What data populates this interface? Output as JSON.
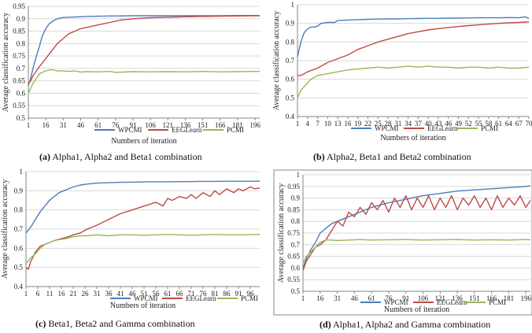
{
  "colors": {
    "WPCMI": "#4a7ebb",
    "EEGLearn": "#be4b48",
    "PCMI": "#98b954",
    "grid": "#d9d9d9",
    "axis": "#868686"
  },
  "chart_data": [
    {
      "type": "line",
      "panel_label": "(a)",
      "caption": "Alpha1, Alpha2 and Beta1 combination",
      "xlabel": "Numbers of iteration",
      "ylabel": "Average classification accuracy",
      "ylim": [
        0.5,
        0.95
      ],
      "yticks": [
        "0.5",
        "0.55",
        "0.6",
        "0.65",
        "0.7",
        "0.75",
        "0.8",
        "0.85",
        "0.9",
        "0.95"
      ],
      "xlim": [
        1,
        200
      ],
      "xticks": [
        1,
        16,
        31,
        46,
        61,
        76,
        91,
        106,
        121,
        136,
        151,
        166,
        181,
        196
      ],
      "grid": true,
      "legend_position": "bottom",
      "series": [
        {
          "name": "WPCMI",
          "x": [
            1,
            3,
            5,
            8,
            10,
            13,
            16,
            19,
            22,
            26,
            31,
            36,
            41,
            46,
            51,
            61,
            71,
            76,
            91,
            106,
            121,
            136,
            151,
            166,
            181,
            196,
            200
          ],
          "values": [
            0.63,
            0.66,
            0.7,
            0.75,
            0.78,
            0.83,
            0.86,
            0.88,
            0.89,
            0.9,
            0.905,
            0.906,
            0.907,
            0.908,
            0.909,
            0.91,
            0.911,
            0.911,
            0.912,
            0.912,
            0.912,
            0.912,
            0.912,
            0.912,
            0.913,
            0.913,
            0.913
          ]
        },
        {
          "name": "EEGLearn",
          "x": [
            1,
            3,
            5,
            8,
            11,
            16,
            21,
            26,
            31,
            36,
            41,
            46,
            51,
            56,
            61,
            66,
            71,
            76,
            81,
            91,
            106,
            121,
            136,
            151,
            166,
            181,
            196,
            200
          ],
          "values": [
            0.64,
            0.65,
            0.67,
            0.69,
            0.71,
            0.74,
            0.77,
            0.8,
            0.82,
            0.84,
            0.85,
            0.86,
            0.865,
            0.87,
            0.875,
            0.88,
            0.885,
            0.89,
            0.895,
            0.9,
            0.904,
            0.906,
            0.908,
            0.909,
            0.91,
            0.911,
            0.912,
            0.912
          ]
        },
        {
          "name": "PCMI",
          "x": [
            1,
            3,
            5,
            8,
            11,
            16,
            21,
            26,
            31,
            36,
            41,
            46,
            51,
            61,
            71,
            76,
            91,
            106,
            121,
            136,
            151,
            166,
            181,
            196,
            200
          ],
          "values": [
            0.6,
            0.62,
            0.64,
            0.66,
            0.68,
            0.69,
            0.695,
            0.69,
            0.69,
            0.688,
            0.69,
            0.685,
            0.687,
            0.686,
            0.688,
            0.684,
            0.687,
            0.686,
            0.687,
            0.686,
            0.688,
            0.686,
            0.687,
            0.688,
            0.688
          ]
        }
      ]
    },
    {
      "type": "line",
      "panel_label": "(b)",
      "caption": "Alpha2, Beta1 and Beta2 combination",
      "xlabel": "Numbers of iteration",
      "ylabel": "Average classification accuracy",
      "ylim": [
        0.4,
        1
      ],
      "yticks": [
        "0.4",
        "0.5",
        "0.6",
        "0.7",
        "0.8",
        "0.9",
        "1"
      ],
      "xlim": [
        1,
        70
      ],
      "xticks": [
        1,
        4,
        7,
        10,
        13,
        16,
        19,
        22,
        25,
        28,
        31,
        34,
        37,
        40,
        43,
        46,
        49,
        52,
        55,
        58,
        61,
        64,
        67,
        70
      ],
      "grid": true,
      "legend_position": "bottom",
      "series": [
        {
          "name": "WPCMI",
          "x": [
            1,
            2,
            3,
            4,
            5,
            6,
            7,
            8,
            10,
            12,
            13,
            16,
            19,
            22,
            25,
            28,
            31,
            34,
            37,
            40,
            43,
            46,
            49,
            52,
            55,
            58,
            61,
            64,
            67,
            69,
            70
          ],
          "values": [
            0.72,
            0.8,
            0.85,
            0.87,
            0.88,
            0.88,
            0.885,
            0.9,
            0.905,
            0.905,
            0.915,
            0.918,
            0.92,
            0.922,
            0.923,
            0.924,
            0.924,
            0.925,
            0.926,
            0.927,
            0.927,
            0.928,
            0.928,
            0.929,
            0.93,
            0.93,
            0.93,
            0.931,
            0.93,
            0.935,
            0.925
          ]
        },
        {
          "name": "EEGLearn",
          "x": [
            1,
            2,
            4,
            7,
            10,
            13,
            16,
            19,
            22,
            25,
            28,
            31,
            34,
            37,
            40,
            43,
            46,
            49,
            52,
            55,
            58,
            61,
            64,
            67,
            70
          ],
          "values": [
            0.62,
            0.62,
            0.64,
            0.66,
            0.69,
            0.71,
            0.73,
            0.76,
            0.78,
            0.8,
            0.815,
            0.83,
            0.845,
            0.855,
            0.865,
            0.872,
            0.878,
            0.883,
            0.888,
            0.892,
            0.896,
            0.9,
            0.903,
            0.905,
            0.908
          ]
        },
        {
          "name": "PCMI",
          "x": [
            1,
            2,
            3,
            4,
            5,
            7,
            10,
            13,
            16,
            19,
            22,
            25,
            28,
            31,
            34,
            37,
            40,
            43,
            46,
            49,
            52,
            55,
            58,
            61,
            64,
            67,
            70
          ],
          "values": [
            0.5,
            0.54,
            0.56,
            0.58,
            0.6,
            0.62,
            0.63,
            0.64,
            0.65,
            0.655,
            0.66,
            0.665,
            0.66,
            0.665,
            0.67,
            0.665,
            0.67,
            0.665,
            0.665,
            0.66,
            0.665,
            0.665,
            0.66,
            0.665,
            0.66,
            0.66,
            0.665
          ]
        }
      ]
    },
    {
      "type": "line",
      "panel_label": "(c)",
      "caption": "Beta1, Beta2 and Gamma combination",
      "xlabel": "Numbers of iteration",
      "ylabel": "Average classification accuracy",
      "ylim": [
        0.4,
        1
      ],
      "yticks": [
        "0.4",
        "0.5",
        "0.6",
        "0.7",
        "0.8",
        "0.9",
        "1"
      ],
      "xlim": [
        1,
        100
      ],
      "xticks": [
        1,
        6,
        11,
        16,
        21,
        26,
        31,
        36,
        41,
        46,
        51,
        56,
        61,
        66,
        71,
        76,
        81,
        86,
        91,
        96
      ],
      "grid": true,
      "legend_position": "bottom",
      "series": [
        {
          "name": "WPCMI",
          "x": [
            1,
            3,
            5,
            7,
            9,
            11,
            13,
            15,
            17,
            19,
            21,
            24,
            27,
            31,
            36,
            41,
            46,
            51,
            56,
            61,
            66,
            71,
            76,
            81,
            86,
            91,
            96,
            100
          ],
          "values": [
            0.68,
            0.71,
            0.75,
            0.79,
            0.82,
            0.85,
            0.87,
            0.89,
            0.9,
            0.91,
            0.92,
            0.93,
            0.935,
            0.94,
            0.942,
            0.944,
            0.945,
            0.946,
            0.947,
            0.947,
            0.948,
            0.948,
            0.949,
            0.949,
            0.95,
            0.95,
            0.95,
            0.95
          ]
        },
        {
          "name": "EEGLearn",
          "x": [
            1,
            2,
            3,
            5,
            7,
            9,
            11,
            13,
            16,
            19,
            21,
            24,
            27,
            31,
            36,
            41,
            46,
            51,
            56,
            59,
            61,
            63,
            66,
            69,
            71,
            73,
            76,
            79,
            81,
            83,
            86,
            89,
            91,
            93,
            96,
            98,
            100
          ],
          "values": [
            0.5,
            0.49,
            0.53,
            0.58,
            0.61,
            0.62,
            0.63,
            0.64,
            0.65,
            0.66,
            0.67,
            0.68,
            0.7,
            0.72,
            0.75,
            0.78,
            0.8,
            0.82,
            0.84,
            0.82,
            0.86,
            0.85,
            0.87,
            0.86,
            0.88,
            0.86,
            0.89,
            0.87,
            0.9,
            0.88,
            0.91,
            0.89,
            0.91,
            0.9,
            0.92,
            0.91,
            0.915
          ]
        },
        {
          "name": "PCMI",
          "x": [
            1,
            3,
            5,
            7,
            9,
            11,
            13,
            15,
            18,
            21,
            24,
            27,
            31,
            36,
            41,
            46,
            51,
            56,
            61,
            66,
            71,
            76,
            81,
            86,
            91,
            96,
            100
          ],
          "values": [
            0.52,
            0.55,
            0.57,
            0.6,
            0.62,
            0.63,
            0.64,
            0.645,
            0.65,
            0.66,
            0.665,
            0.665,
            0.67,
            0.665,
            0.67,
            0.67,
            0.668,
            0.67,
            0.672,
            0.67,
            0.668,
            0.67,
            0.672,
            0.67,
            0.67,
            0.671,
            0.672
          ]
        }
      ]
    },
    {
      "type": "line",
      "panel_label": "(d)",
      "caption": "Alpha1, Alpha2 and Gamma combination",
      "xlabel": "Numbers of iteration",
      "ylabel": "Average classification accuracy",
      "ylim": [
        0.5,
        1
      ],
      "yticks": [
        "0.5",
        "0.55",
        "0.6",
        "0.65",
        "0.7",
        "0.75",
        "0.8",
        "0.85",
        "0.9",
        "0.95",
        "1"
      ],
      "xlim": [
        1,
        200
      ],
      "xticks": [
        1,
        16,
        31,
        46,
        61,
        76,
        91,
        106,
        121,
        136,
        151,
        166,
        181,
        196
      ],
      "grid": true,
      "legend_position": "bottom",
      "series": [
        {
          "name": "WPCMI",
          "x": [
            1,
            4,
            8,
            12,
            16,
            21,
            26,
            31,
            41,
            51,
            61,
            76,
            91,
            106,
            121,
            136,
            151,
            166,
            181,
            196,
            200
          ],
          "values": [
            0.6,
            0.64,
            0.68,
            0.71,
            0.75,
            0.77,
            0.79,
            0.8,
            0.82,
            0.84,
            0.86,
            0.88,
            0.895,
            0.91,
            0.92,
            0.93,
            0.935,
            0.94,
            0.945,
            0.95,
            0.952
          ]
        },
        {
          "name": "EEGLearn",
          "x": [
            1,
            4,
            8,
            12,
            16,
            21,
            26,
            31,
            36,
            41,
            46,
            51,
            56,
            61,
            66,
            71,
            76,
            81,
            86,
            91,
            96,
            101,
            106,
            111,
            116,
            121,
            126,
            131,
            136,
            141,
            146,
            151,
            156,
            161,
            166,
            171,
            176,
            181,
            186,
            191,
            196,
            200
          ],
          "values": [
            0.59,
            0.63,
            0.66,
            0.69,
            0.7,
            0.72,
            0.76,
            0.8,
            0.78,
            0.84,
            0.82,
            0.86,
            0.83,
            0.88,
            0.85,
            0.89,
            0.84,
            0.9,
            0.86,
            0.91,
            0.85,
            0.9,
            0.86,
            0.91,
            0.85,
            0.9,
            0.86,
            0.91,
            0.85,
            0.9,
            0.87,
            0.91,
            0.86,
            0.9,
            0.85,
            0.91,
            0.86,
            0.9,
            0.87,
            0.91,
            0.86,
            0.89
          ]
        },
        {
          "name": "PCMI",
          "x": [
            1,
            4,
            8,
            12,
            16,
            21,
            26,
            31,
            41,
            51,
            61,
            76,
            91,
            106,
            121,
            136,
            151,
            166,
            181,
            196,
            200
          ],
          "values": [
            0.62,
            0.65,
            0.67,
            0.69,
            0.71,
            0.72,
            0.72,
            0.718,
            0.72,
            0.722,
            0.72,
            0.721,
            0.722,
            0.72,
            0.721,
            0.722,
            0.72,
            0.721,
            0.72,
            0.722,
            0.721
          ]
        }
      ]
    }
  ]
}
